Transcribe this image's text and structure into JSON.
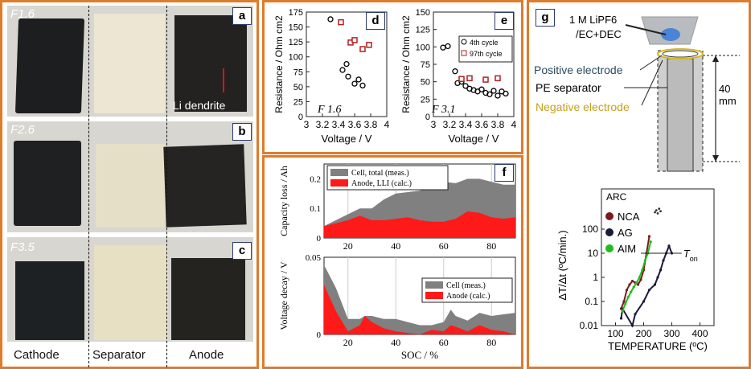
{
  "photos": {
    "rows": [
      {
        "label": "F1.6",
        "tag": "a",
        "annotation": "Li dendrite"
      },
      {
        "label": "F2.6",
        "tag": "b"
      },
      {
        "label": "F3.5",
        "tag": "c"
      }
    ],
    "columns": [
      "Cathode",
      "Separator",
      "Anode"
    ]
  },
  "colors": {
    "frame": "#e07b2a",
    "series_a": "#000000",
    "series_b": "#b02020",
    "cell": "#808080",
    "anode": "#ff1a1a"
  },
  "panel_d": {
    "tag": "d",
    "annot": "F 1.6"
  },
  "panel_e": {
    "tag": "e",
    "annot": "F 3.1",
    "legend": [
      "4th cycle",
      "97th cycle"
    ]
  },
  "panel_f": {
    "tag": "f"
  },
  "panel_g": {
    "tag": "g",
    "labels": {
      "electrolyte_1": "1 M LiPF6",
      "electrolyte_2": "/EC+DEC",
      "positive": "Positive electrode",
      "separator": "PE separator",
      "negative": "Negative electrode",
      "dim": "40 mm"
    }
  },
  "chart_data": [
    {
      "type": "scatter",
      "id": "d",
      "xlabel": "Voltage / V",
      "ylabel": "Resistance / Ohm cm2",
      "xlim": [
        3,
        4
      ],
      "ylim": [
        0,
        175
      ],
      "xticks": [
        3,
        3.2,
        3.4,
        3.6,
        3.8,
        4
      ],
      "yticks": [
        0,
        25,
        50,
        75,
        100,
        125,
        150,
        175
      ],
      "series": [
        {
          "marker": "circle",
          "x": [
            3.3,
            3.45,
            3.5,
            3.52,
            3.6,
            3.65,
            3.7
          ],
          "y": [
            163,
            78,
            88,
            67,
            55,
            62,
            52
          ]
        },
        {
          "marker": "square",
          "x": [
            3.43,
            3.55,
            3.6,
            3.7,
            3.78
          ],
          "y": [
            158,
            124,
            128,
            113,
            120
          ]
        }
      ]
    },
    {
      "type": "scatter",
      "id": "e",
      "xlabel": "Voltage / V",
      "ylabel": "Resistance / Ohm cm2",
      "xlim": [
        3,
        4
      ],
      "ylim": [
        0,
        150
      ],
      "xticks": [
        3,
        3.2,
        3.4,
        3.6,
        3.8,
        4
      ],
      "yticks": [
        0,
        25,
        50,
        75,
        100,
        125,
        150
      ],
      "series": [
        {
          "name": "4th cycle",
          "marker": "circle",
          "x": [
            3.12,
            3.18,
            3.27,
            3.3,
            3.35,
            3.4,
            3.45,
            3.5,
            3.55,
            3.6,
            3.65,
            3.7,
            3.75,
            3.8,
            3.85,
            3.9
          ],
          "y": [
            99,
            101,
            65,
            48,
            50,
            44,
            40,
            38,
            36,
            39,
            34,
            32,
            37,
            30,
            36,
            33
          ]
        },
        {
          "name": "97th cycle",
          "marker": "square",
          "x": [
            3.35,
            3.45,
            3.65,
            3.8
          ],
          "y": [
            54,
            55,
            53,
            55
          ]
        }
      ]
    },
    {
      "type": "area",
      "id": "f-top",
      "ylabel": "Capacity loss / Ah",
      "xlim": [
        10,
        90
      ],
      "ylim": [
        0,
        0.25
      ],
      "xticks": [
        20,
        40,
        60,
        80
      ],
      "yticks": [
        0,
        0.1,
        0.2
      ],
      "x": [
        10,
        15,
        20,
        25,
        30,
        35,
        40,
        45,
        50,
        55,
        60,
        65,
        70,
        75,
        80,
        85,
        90
      ],
      "series": [
        {
          "name": "Cell, total (meas.)",
          "values": [
            0.04,
            0.06,
            0.08,
            0.1,
            0.1,
            0.13,
            0.15,
            0.155,
            0.16,
            0.175,
            0.19,
            0.185,
            0.2,
            0.2,
            0.19,
            0.18,
            0.18
          ]
        },
        {
          "name": "Anode, LLI (calc.)",
          "values": [
            0.04,
            0.05,
            0.06,
            0.075,
            0.06,
            0.06,
            0.065,
            0.07,
            0.06,
            0.055,
            0.055,
            0.065,
            0.09,
            0.085,
            0.07,
            0.065,
            0.07
          ]
        }
      ]
    },
    {
      "type": "area",
      "id": "f-bottom",
      "xlabel": "SOC / %",
      "ylabel": "Voltage decay / V",
      "xlim": [
        10,
        90
      ],
      "ylim": [
        0,
        0.05
      ],
      "xticks": [
        20,
        40,
        60,
        80
      ],
      "yticks": [
        0,
        0.05
      ],
      "x": [
        10,
        15,
        20,
        25,
        27,
        30,
        35,
        40,
        45,
        50,
        55,
        60,
        63,
        65,
        70,
        75,
        80,
        85,
        90
      ],
      "series": [
        {
          "name": "Cell (meas.)",
          "values": [
            0.045,
            0.03,
            0.01,
            0.01,
            0.012,
            0.012,
            0.01,
            0.01,
            0.008,
            0.006,
            0.006,
            0.008,
            0.016,
            0.012,
            0.009,
            0.014,
            0.012,
            0.013,
            0.014
          ]
        },
        {
          "name": "Anode (calc.)",
          "values": [
            0.032,
            0.015,
            0.002,
            0.006,
            0.012,
            0.008,
            0.004,
            0.002,
            0.001,
            0.0,
            0.003,
            0.002,
            0.006,
            0.005,
            0.002,
            0.006,
            0.003,
            0.002,
            0.0
          ]
        }
      ]
    },
    {
      "type": "scatter",
      "id": "g-arc",
      "xlabel": "TEMPERATURE (ºC)",
      "ylabel": "ΔT/Δt (ºC/min.)",
      "title": "ARC",
      "annotation": "T",
      "annotation_sub": "on",
      "log_y": true,
      "xlim": [
        50,
        450
      ],
      "ylim": [
        0.01,
        1000
      ],
      "xticks": [
        100,
        200,
        300,
        400
      ],
      "yticks": [
        0.01,
        0.1,
        1,
        10,
        100
      ],
      "ytick_labels": [
        "0.01",
        "0.1",
        "1",
        "10",
        "100"
      ],
      "series": [
        {
          "name": "NCA",
          "color": "#7a1a1a",
          "x": [
            120,
            130,
            140,
            150,
            160,
            170,
            180,
            190,
            200,
            210,
            220
          ],
          "y": [
            0.05,
            0.1,
            0.3,
            0.5,
            0.7,
            0.6,
            0.5,
            0.8,
            2,
            10,
            50
          ]
        },
        {
          "name": "AG",
          "color": "#1a1a3a",
          "x": [
            120,
            125,
            160,
            170,
            200,
            220,
            240,
            250,
            260,
            270,
            280,
            290,
            300
          ],
          "y": [
            0.02,
            0.05,
            0.01,
            0.03,
            0.1,
            0.3,
            0.5,
            1,
            2,
            5,
            10,
            20,
            10
          ]
        },
        {
          "name": "AIM",
          "color": "#22bb22",
          "x": [
            125,
            135,
            145,
            155,
            165,
            175,
            185,
            195,
            205,
            215,
            225
          ],
          "y": [
            0.04,
            0.08,
            0.15,
            0.25,
            0.4,
            0.6,
            1,
            2,
            5,
            10,
            30
          ]
        }
      ],
      "extra_points_x": [
        240,
        245,
        250,
        255,
        260
      ],
      "extra_points_y": [
        500,
        600,
        450,
        700,
        550
      ]
    }
  ]
}
